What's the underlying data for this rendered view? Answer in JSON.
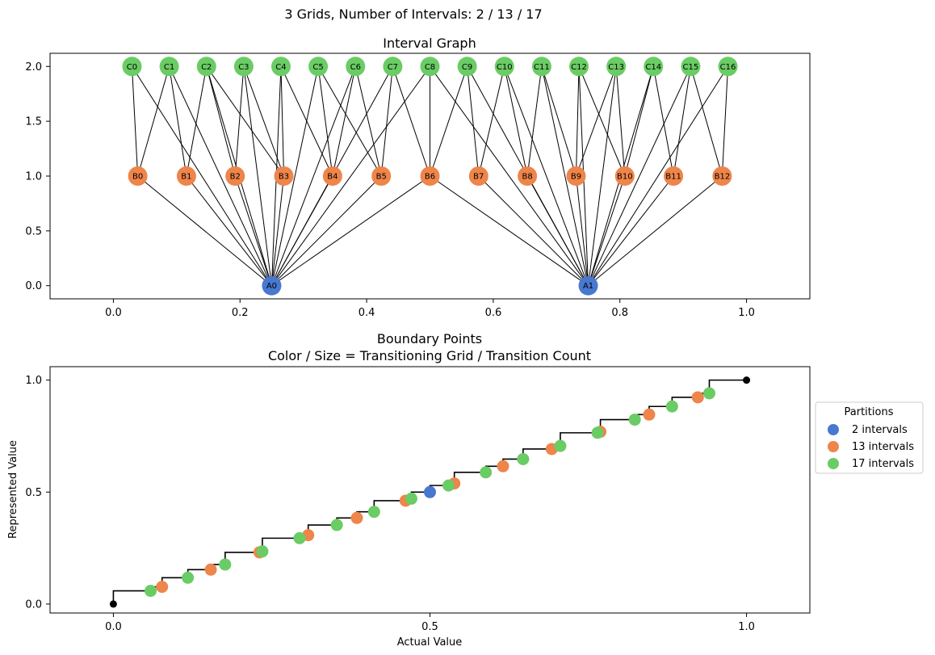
{
  "figure": {
    "suptitle": "3 Grids, Number of Intervals: 2 / 13 / 17"
  },
  "chart_data": [
    {
      "type": "network",
      "title": "Interval Graph",
      "xlim": [
        -0.1,
        1.1
      ],
      "ylim": [
        -0.12,
        2.12
      ],
      "xticks": [
        0.0,
        0.2,
        0.4,
        0.6,
        0.8,
        1.0
      ],
      "xtick_labels": [
        "0.0",
        "0.2",
        "0.4",
        "0.6",
        "0.8",
        "1.0"
      ],
      "yticks": [
        0.0,
        0.5,
        1.0,
        1.5,
        2.0
      ],
      "ytick_labels": [
        "0.0",
        "0.5",
        "1.0",
        "1.5",
        "2.0"
      ],
      "colors": {
        "A": "#4878cf",
        "B": "#ee854a",
        "C": "#6acc64"
      },
      "nodes": {
        "A": {
          "labels": [
            "A0",
            "A1"
          ],
          "x": [
            0.25,
            0.75
          ],
          "y": 0
        },
        "B": {
          "labels": [
            "B0",
            "B1",
            "B2",
            "B3",
            "B4",
            "B5",
            "B6",
            "B7",
            "B8",
            "B9",
            "B10",
            "B11",
            "B12"
          ],
          "x": [
            0.0385,
            0.1154,
            0.1923,
            0.2692,
            0.3462,
            0.4231,
            0.5,
            0.5769,
            0.6538,
            0.7308,
            0.8077,
            0.8846,
            0.9615
          ],
          "y": 1
        },
        "C": {
          "labels": [
            "C0",
            "C1",
            "C2",
            "C3",
            "C4",
            "C5",
            "C6",
            "C7",
            "C8",
            "C9",
            "C10",
            "C11",
            "C12",
            "C13",
            "C14",
            "C15",
            "C16"
          ],
          "x": [
            0.0294,
            0.0882,
            0.1471,
            0.2059,
            0.2647,
            0.3235,
            0.3824,
            0.4412,
            0.5,
            0.5588,
            0.6176,
            0.6765,
            0.7353,
            0.7941,
            0.8529,
            0.9118,
            0.9706
          ],
          "y": 2
        }
      },
      "edges": [
        [
          "A0",
          "B0"
        ],
        [
          "A0",
          "B1"
        ],
        [
          "A0",
          "B2"
        ],
        [
          "A0",
          "B3"
        ],
        [
          "A0",
          "B4"
        ],
        [
          "A0",
          "B5"
        ],
        [
          "A0",
          "B6"
        ],
        [
          "A0",
          "C0"
        ],
        [
          "A0",
          "C1"
        ],
        [
          "A0",
          "C2"
        ],
        [
          "A0",
          "C3"
        ],
        [
          "A0",
          "C4"
        ],
        [
          "A0",
          "C5"
        ],
        [
          "A0",
          "C6"
        ],
        [
          "A0",
          "C7"
        ],
        [
          "A0",
          "C8"
        ],
        [
          "A1",
          "B6"
        ],
        [
          "A1",
          "B7"
        ],
        [
          "A1",
          "B8"
        ],
        [
          "A1",
          "B9"
        ],
        [
          "A1",
          "B10"
        ],
        [
          "A1",
          "B11"
        ],
        [
          "A1",
          "B12"
        ],
        [
          "A1",
          "C8"
        ],
        [
          "A1",
          "C9"
        ],
        [
          "A1",
          "C10"
        ],
        [
          "A1",
          "C11"
        ],
        [
          "A1",
          "C12"
        ],
        [
          "A1",
          "C13"
        ],
        [
          "A1",
          "C14"
        ],
        [
          "A1",
          "C15"
        ],
        [
          "A1",
          "C16"
        ],
        [
          "B0",
          "C0"
        ],
        [
          "B0",
          "C1"
        ],
        [
          "B1",
          "C1"
        ],
        [
          "B1",
          "C2"
        ],
        [
          "B2",
          "C2"
        ],
        [
          "B2",
          "C3"
        ],
        [
          "B3",
          "C2"
        ],
        [
          "B3",
          "C3"
        ],
        [
          "B3",
          "C4"
        ],
        [
          "B4",
          "C4"
        ],
        [
          "B4",
          "C5"
        ],
        [
          "B4",
          "C6"
        ],
        [
          "B5",
          "C5"
        ],
        [
          "B5",
          "C6"
        ],
        [
          "B5",
          "C7"
        ],
        [
          "B6",
          "C7"
        ],
        [
          "B6",
          "C8"
        ],
        [
          "B6",
          "C9"
        ],
        [
          "B7",
          "C9"
        ],
        [
          "B7",
          "C10"
        ],
        [
          "B8",
          "C10"
        ],
        [
          "B8",
          "C11"
        ],
        [
          "B9",
          "C11"
        ],
        [
          "B9",
          "C12"
        ],
        [
          "B9",
          "C13"
        ],
        [
          "B10",
          "C12"
        ],
        [
          "B10",
          "C13"
        ],
        [
          "B10",
          "C14"
        ],
        [
          "B11",
          "C14"
        ],
        [
          "B11",
          "C15"
        ],
        [
          "B12",
          "C15"
        ],
        [
          "B12",
          "C16"
        ]
      ]
    },
    {
      "type": "scatter",
      "title_lines": [
        "Boundary Points",
        "Color / Size = Transitioning Grid / Transition Count"
      ],
      "xlabel": "Actual Value",
      "ylabel": "Represented Value",
      "xlim": [
        -0.1,
        1.1
      ],
      "ylim": [
        -0.04,
        1.06
      ],
      "xticks": [
        0.0,
        0.5,
        1.0
      ],
      "xtick_labels": [
        "0.0",
        "0.5",
        "1.0"
      ],
      "yticks": [
        0.0,
        0.5,
        1.0
      ],
      "ytick_labels": [
        "0.0",
        "0.5",
        "1.0"
      ],
      "legend": {
        "title": "Partitions",
        "position": "right",
        "entries": [
          "2 intervals",
          "13 intervals",
          "17 intervals"
        ]
      },
      "step": {
        "x": [
          0.0,
          0.0588,
          0.0769,
          0.1176,
          0.1538,
          0.1765,
          0.2308,
          0.2353,
          0.2941,
          0.3077,
          0.3529,
          0.3846,
          0.4118,
          0.4615,
          0.4706,
          0.5,
          0.5294,
          0.5385,
          0.5882,
          0.6154,
          0.6471,
          0.6923,
          0.7059,
          0.7647,
          0.7692,
          0.8235,
          0.8462,
          0.8824,
          0.9231,
          0.9412,
          1.0
        ],
        "y": [
          0.0588,
          0.0769,
          0.1176,
          0.1538,
          0.1765,
          0.2308,
          0.2353,
          0.2941,
          0.3077,
          0.3529,
          0.3846,
          0.4118,
          0.4615,
          0.4706,
          0.5,
          0.5294,
          0.5385,
          0.5882,
          0.6154,
          0.6471,
          0.6923,
          0.7059,
          0.7647,
          0.7692,
          0.8235,
          0.8462,
          0.8824,
          0.9231,
          0.9412,
          1.0,
          1.0
        ]
      },
      "endpoints": {
        "x": [
          0.0,
          1.0
        ],
        "y": [
          0.0,
          1.0
        ],
        "color": "#000000"
      },
      "series": [
        {
          "name": "2 intervals",
          "color": "#4878cf",
          "x": [
            0.5
          ],
          "y": [
            0.5
          ]
        },
        {
          "name": "13 intervals",
          "color": "#ee854a",
          "x": [
            0.0769,
            0.1538,
            0.2308,
            0.3077,
            0.3846,
            0.4615,
            0.5385,
            0.6154,
            0.6923,
            0.7692,
            0.8462,
            0.9231
          ],
          "y": [
            0.0769,
            0.1538,
            0.2308,
            0.3077,
            0.3846,
            0.4615,
            0.5385,
            0.6154,
            0.6923,
            0.7692,
            0.8462,
            0.9231
          ]
        },
        {
          "name": "17 intervals",
          "color": "#6acc64",
          "x": [
            0.0588,
            0.1176,
            0.1765,
            0.2353,
            0.2941,
            0.3529,
            0.4118,
            0.4706,
            0.5294,
            0.5882,
            0.6471,
            0.7059,
            0.7647,
            0.8235,
            0.8824,
            0.9412
          ],
          "y": [
            0.0588,
            0.1176,
            0.1765,
            0.2353,
            0.2941,
            0.3529,
            0.4118,
            0.4706,
            0.5294,
            0.5882,
            0.6471,
            0.7059,
            0.7647,
            0.8235,
            0.8824,
            0.9412
          ]
        }
      ]
    }
  ]
}
